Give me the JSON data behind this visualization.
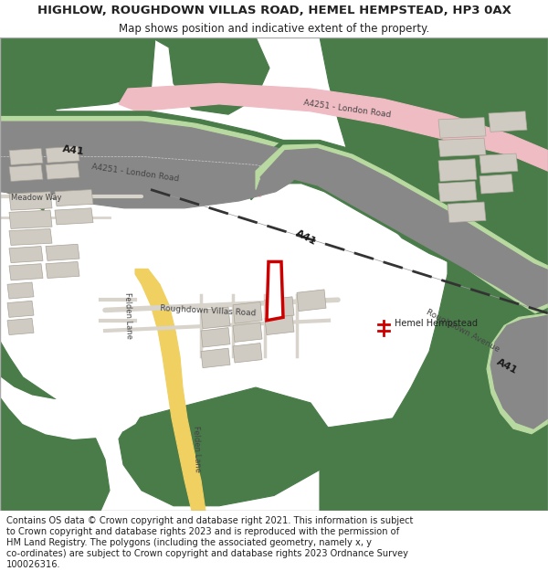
{
  "title": "HIGHLOW, ROUGHDOWN VILLAS ROAD, HEMEL HEMPSTEAD, HP3 0AX",
  "subtitle": "Map shows position and indicative extent of the property.",
  "footer_lines": [
    "Contains OS data © Crown copyright and database right 2021. This information is subject",
    "to Crown copyright and database rights 2023 and is reproduced with the permission of",
    "HM Land Registry. The polygons (including the associated geometry, namely x, y",
    "co-ordinates) are subject to Crown copyright and database rights 2023 Ordnance Survey",
    "100026316."
  ],
  "bg_color": "#ffffff",
  "map_bg": "#f2f0eb",
  "green_dark": "#4a7c4a",
  "green_light": "#b8d9a0",
  "green_pale": "#d8ecc4",
  "road_pink": "#f0bcc4",
  "road_yellow": "#f0d060",
  "building_fill": "#d0cbc2",
  "building_edge": "#aaa498",
  "plot_color": "#cc0000",
  "text_dark": "#222222",
  "label_color": "#555555",
  "white": "#ffffff",
  "fig_width": 6.0,
  "fig_height": 6.25,
  "title_fs": 9.5,
  "subtitle_fs": 8.5,
  "footer_fs": 7.1,
  "a41_label_color": "#2a5a2a",
  "a4251_label_color": "#555555",
  "road_gray": "#d8d4cc"
}
